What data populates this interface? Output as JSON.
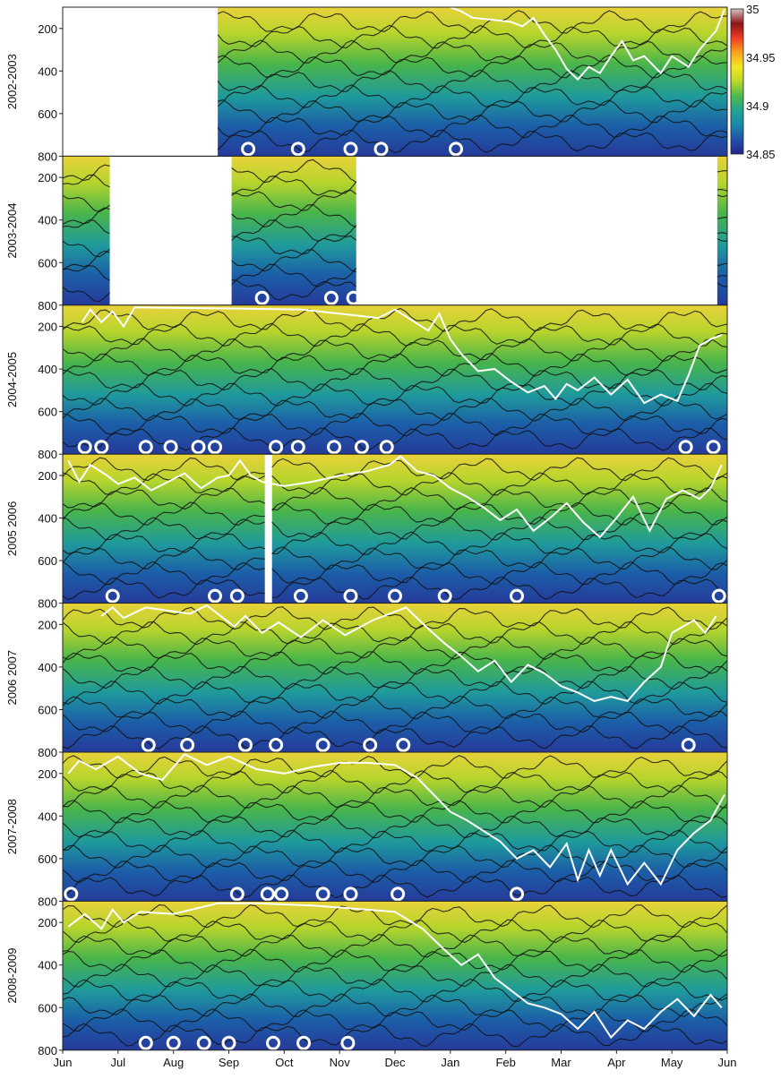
{
  "chart_data": {
    "type": "heatmap",
    "colorbar": {
      "min": 34.85,
      "max": 35,
      "tick_labels": [
        "35",
        "34.95",
        "34.9",
        "34.85"
      ],
      "tick_values": [
        35,
        34.95,
        34.9,
        34.85
      ],
      "colors": [
        "#27238f",
        "#1f52a8",
        "#1a86ad",
        "#22a58f",
        "#4cba4b",
        "#b9d92a",
        "#f3e623",
        "#f9a51d",
        "#ef3c21",
        "#8c1517",
        "#d8c2c2"
      ]
    },
    "x_axis": {
      "tick_labels": [
        "Jun",
        "Jul",
        "Aug",
        "Sep",
        "Oct",
        "Nov",
        "Dec",
        "Jan",
        "Feb",
        "Mar",
        "Apr",
        "May",
        "Jun"
      ]
    },
    "y_axis": {
      "range": [
        100,
        800
      ],
      "tick_values": [
        200,
        400,
        600,
        800
      ],
      "tick_labels": [
        "200",
        "400",
        "600",
        "800"
      ]
    },
    "panels": [
      {
        "label": "2002-2003",
        "data_ranges": [
          [
            2.8,
            12.0
          ]
        ],
        "white_line": [
          [
            7.0,
            100
          ],
          [
            7.2,
            120
          ],
          [
            7.4,
            150
          ],
          [
            7.8,
            160
          ],
          [
            8.1,
            170
          ],
          [
            8.3,
            190
          ],
          [
            8.5,
            150
          ],
          [
            8.7,
            230
          ],
          [
            8.9,
            300
          ],
          [
            9.1,
            390
          ],
          [
            9.3,
            440
          ],
          [
            9.5,
            380
          ],
          [
            9.7,
            410
          ],
          [
            9.9,
            330
          ],
          [
            10.1,
            260
          ],
          [
            10.3,
            350
          ],
          [
            10.5,
            330
          ],
          [
            10.8,
            410
          ],
          [
            11.0,
            330
          ],
          [
            11.3,
            380
          ],
          [
            11.5,
            300
          ],
          [
            11.8,
            210
          ],
          [
            11.95,
            110
          ]
        ],
        "circles": [
          3.35,
          4.25,
          5.2,
          5.75,
          7.1
        ]
      },
      {
        "label": "2003-2004",
        "data_ranges": [
          [
            0.0,
            0.85
          ],
          [
            3.05,
            5.3
          ],
          [
            11.82,
            12.0
          ]
        ],
        "white_line": [],
        "circles": [
          3.6,
          4.85,
          5.25
        ]
      },
      {
        "label": "2004-2005",
        "data_ranges": [
          [
            0.0,
            12.0
          ]
        ],
        "white_line": [
          [
            0.35,
            180
          ],
          [
            0.5,
            120
          ],
          [
            0.7,
            180
          ],
          [
            0.9,
            130
          ],
          [
            1.1,
            200
          ],
          [
            1.3,
            110
          ],
          [
            4.3,
            120
          ],
          [
            5.7,
            160
          ],
          [
            6.0,
            120
          ],
          [
            6.6,
            220
          ],
          [
            6.8,
            140
          ],
          [
            7.0,
            260
          ],
          [
            7.2,
            330
          ],
          [
            7.5,
            410
          ],
          [
            7.8,
            400
          ],
          [
            8.1,
            460
          ],
          [
            8.4,
            510
          ],
          [
            8.7,
            480
          ],
          [
            8.9,
            540
          ],
          [
            9.1,
            470
          ],
          [
            9.3,
            500
          ],
          [
            9.6,
            440
          ],
          [
            9.9,
            520
          ],
          [
            10.2,
            450
          ],
          [
            10.5,
            560
          ],
          [
            10.8,
            520
          ],
          [
            11.1,
            550
          ],
          [
            11.3,
            430
          ],
          [
            11.5,
            290
          ],
          [
            11.7,
            260
          ],
          [
            11.9,
            240
          ]
        ],
        "circles": [
          0.4,
          0.7,
          1.5,
          1.95,
          2.45,
          2.75,
          3.85,
          4.25,
          4.9,
          5.4,
          5.85,
          11.25,
          11.75
        ]
      },
      {
        "label": "2005 2006",
        "data_ranges": [
          [
            0.0,
            3.65
          ],
          [
            3.78,
            12.0
          ]
        ],
        "white_line": [
          [
            0.1,
            130
          ],
          [
            0.3,
            230
          ],
          [
            0.5,
            150
          ],
          [
            0.8,
            200
          ],
          [
            1.0,
            240
          ],
          [
            1.3,
            210
          ],
          [
            1.6,
            270
          ],
          [
            1.9,
            230
          ],
          [
            2.2,
            190
          ],
          [
            2.5,
            260
          ],
          [
            2.8,
            210
          ],
          [
            3.0,
            200
          ],
          [
            3.2,
            130
          ],
          [
            3.4,
            200
          ],
          [
            3.6,
            230
          ],
          [
            4.0,
            250
          ],
          [
            4.5,
            230
          ],
          [
            5.0,
            200
          ],
          [
            5.5,
            180
          ],
          [
            5.9,
            150
          ],
          [
            6.1,
            110
          ],
          [
            6.4,
            180
          ],
          [
            6.7,
            200
          ],
          [
            7.0,
            260
          ],
          [
            7.3,
            300
          ],
          [
            7.6,
            350
          ],
          [
            7.9,
            410
          ],
          [
            8.2,
            360
          ],
          [
            8.5,
            460
          ],
          [
            8.8,
            400
          ],
          [
            9.1,
            330
          ],
          [
            9.4,
            420
          ],
          [
            9.7,
            490
          ],
          [
            10.0,
            400
          ],
          [
            10.3,
            300
          ],
          [
            10.6,
            460
          ],
          [
            10.9,
            310
          ],
          [
            11.2,
            270
          ],
          [
            11.5,
            310
          ],
          [
            11.7,
            260
          ],
          [
            11.9,
            150
          ]
        ],
        "circles": [
          0.9,
          2.75,
          3.15,
          4.3,
          5.2,
          6.0,
          6.9,
          8.2,
          11.85
        ]
      },
      {
        "label": "2006 2007",
        "data_ranges": [
          [
            0.0,
            12.0
          ]
        ],
        "white_line": [
          [
            0.7,
            160
          ],
          [
            0.9,
            120
          ],
          [
            1.1,
            170
          ],
          [
            1.5,
            120
          ],
          [
            2.3,
            150
          ],
          [
            2.6,
            110
          ],
          [
            3.1,
            210
          ],
          [
            3.3,
            160
          ],
          [
            3.6,
            240
          ],
          [
            3.9,
            190
          ],
          [
            4.3,
            260
          ],
          [
            4.7,
            180
          ],
          [
            5.1,
            250
          ],
          [
            5.6,
            180
          ],
          [
            6.2,
            120
          ],
          [
            6.6,
            220
          ],
          [
            6.9,
            290
          ],
          [
            7.2,
            350
          ],
          [
            7.5,
            420
          ],
          [
            7.8,
            370
          ],
          [
            8.1,
            470
          ],
          [
            8.4,
            390
          ],
          [
            8.7,
            430
          ],
          [
            9.0,
            490
          ],
          [
            9.3,
            520
          ],
          [
            9.6,
            560
          ],
          [
            9.9,
            540
          ],
          [
            10.2,
            560
          ],
          [
            10.5,
            470
          ],
          [
            10.8,
            400
          ],
          [
            11.0,
            240
          ],
          [
            11.2,
            210
          ],
          [
            11.4,
            180
          ],
          [
            11.6,
            240
          ],
          [
            11.8,
            160
          ]
        ],
        "circles": [
          1.55,
          2.25,
          3.3,
          3.85,
          4.7,
          5.55,
          6.15,
          11.3
        ]
      },
      {
        "label": "2007-2008",
        "data_ranges": [
          [
            0.0,
            12.0
          ]
        ],
        "white_line": [
          [
            0.1,
            200
          ],
          [
            0.3,
            140
          ],
          [
            0.6,
            180
          ],
          [
            1.0,
            120
          ],
          [
            1.4,
            200
          ],
          [
            1.8,
            230
          ],
          [
            2.2,
            110
          ],
          [
            2.6,
            160
          ],
          [
            3.0,
            120
          ],
          [
            3.5,
            180
          ],
          [
            4.0,
            200
          ],
          [
            4.5,
            170
          ],
          [
            5.0,
            150
          ],
          [
            5.5,
            150
          ],
          [
            6.0,
            160
          ],
          [
            6.4,
            220
          ],
          [
            6.7,
            300
          ],
          [
            7.0,
            380
          ],
          [
            7.3,
            420
          ],
          [
            7.6,
            470
          ],
          [
            7.9,
            520
          ],
          [
            8.2,
            600
          ],
          [
            8.5,
            560
          ],
          [
            8.8,
            640
          ],
          [
            9.1,
            530
          ],
          [
            9.3,
            700
          ],
          [
            9.5,
            560
          ],
          [
            9.7,
            680
          ],
          [
            9.9,
            560
          ],
          [
            10.2,
            720
          ],
          [
            10.5,
            620
          ],
          [
            10.8,
            720
          ],
          [
            11.1,
            560
          ],
          [
            11.4,
            480
          ],
          [
            11.7,
            420
          ],
          [
            11.95,
            300
          ]
        ],
        "circles": [
          0.15,
          3.15,
          3.7,
          3.95,
          4.7,
          5.2,
          6.05,
          8.2
        ]
      },
      {
        "label": "2008-2009",
        "data_ranges": [
          [
            0.0,
            12.0
          ]
        ],
        "white_line": [
          [
            0.1,
            220
          ],
          [
            0.4,
            160
          ],
          [
            0.7,
            230
          ],
          [
            0.9,
            140
          ],
          [
            1.1,
            200
          ],
          [
            1.4,
            150
          ],
          [
            2.0,
            160
          ],
          [
            2.8,
            110
          ],
          [
            3.5,
            110
          ],
          [
            4.5,
            120
          ],
          [
            5.5,
            140
          ],
          [
            6.0,
            150
          ],
          [
            6.5,
            230
          ],
          [
            6.9,
            330
          ],
          [
            7.2,
            400
          ],
          [
            7.5,
            350
          ],
          [
            7.8,
            460
          ],
          [
            8.1,
            520
          ],
          [
            8.4,
            580
          ],
          [
            8.7,
            600
          ],
          [
            9.0,
            630
          ],
          [
            9.3,
            700
          ],
          [
            9.6,
            620
          ],
          [
            9.9,
            740
          ],
          [
            10.2,
            660
          ],
          [
            10.5,
            700
          ],
          [
            10.8,
            620
          ],
          [
            11.1,
            560
          ],
          [
            11.4,
            640
          ],
          [
            11.7,
            540
          ],
          [
            11.9,
            600
          ]
        ],
        "circles": [
          1.5,
          2.0,
          2.55,
          3.0,
          3.8,
          4.35,
          5.15
        ]
      }
    ]
  }
}
